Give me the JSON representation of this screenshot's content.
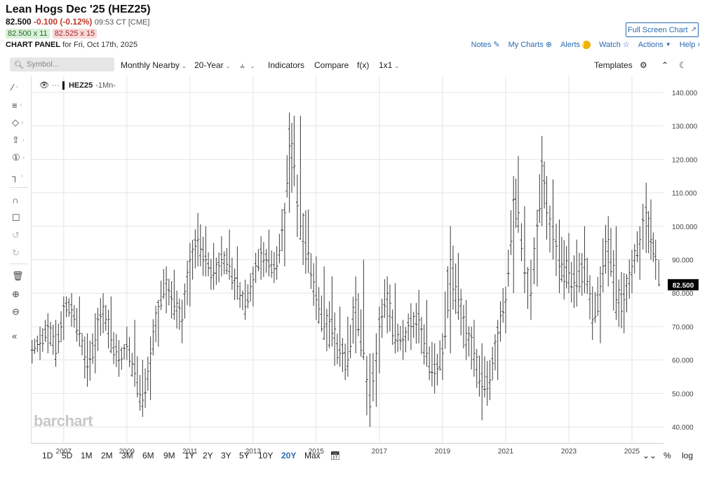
{
  "header": {
    "title": "Lean Hogs Dec '25 (HEZ25)",
    "last": "82.500",
    "change": "-0.100 (-0.12%)",
    "time": "09:53 CT [CME]",
    "bid": "82.500 x 11",
    "ask": "82.525 x 15",
    "panel_label": "CHART PANEL",
    "panel_date": "for Fri, Oct 17th, 2025",
    "fullscreen_label": "Full Screen Chart"
  },
  "toplinks": {
    "notes": "Notes",
    "mycharts": "My Charts",
    "alerts": "Alerts",
    "watch": "Watch",
    "actions": "Actions",
    "help": "Help"
  },
  "toolbar": {
    "search_placeholder": "Symbol...",
    "period": "Monthly Nearby",
    "range": "20-Year",
    "indicators": "Indicators",
    "compare": "Compare",
    "fx": "f(x)",
    "layout": "1x1",
    "templates": "Templates"
  },
  "legend": {
    "symbol": "HEZ25",
    "interval": "-1Mn-"
  },
  "watermark": "barchart",
  "timeframes": [
    "1D",
    "5D",
    "1M",
    "2M",
    "3M",
    "6M",
    "9M",
    "1Y",
    "2Y",
    "3Y",
    "5Y",
    "10Y",
    "20Y",
    "Max"
  ],
  "active_timeframe": "20Y",
  "bottom_right": {
    "percent": "%",
    "log": "log"
  },
  "colors": {
    "accent": "#2a6ab0",
    "bars": "#444444",
    "last_label_bg": "#000000"
  },
  "chart_data": {
    "type": "ohlc",
    "title": "",
    "x_tick_labels": [
      "2007",
      "2009",
      "2011",
      "2013",
      "2015",
      "2017",
      "2019",
      "2021",
      "2023",
      "2025"
    ],
    "y_tick_labels": [
      "40.000",
      "50.000",
      "60.000",
      "70.000",
      "80.000",
      "90.000",
      "100.000",
      "110.000",
      "120.000",
      "130.000",
      "140.000"
    ],
    "ylim": [
      35,
      145
    ],
    "xlim": [
      2005.96,
      2026.0
    ],
    "last_price_label": "82.500",
    "grid": true,
    "bars_monthly_approx": [
      {
        "t": 2006.0,
        "h": 66,
        "l": 59,
        "c": 63
      },
      {
        "t": 2006.25,
        "h": 70,
        "l": 60,
        "c": 65
      },
      {
        "t": 2006.5,
        "h": 74,
        "l": 62,
        "c": 70
      },
      {
        "t": 2006.75,
        "h": 72,
        "l": 58,
        "c": 62
      },
      {
        "t": 2007.0,
        "h": 79,
        "l": 66,
        "c": 76
      },
      {
        "t": 2007.25,
        "h": 80,
        "l": 70,
        "c": 75
      },
      {
        "t": 2007.5,
        "h": 79,
        "l": 64,
        "c": 68
      },
      {
        "t": 2007.75,
        "h": 68,
        "l": 52,
        "c": 58
      },
      {
        "t": 2008.0,
        "h": 74,
        "l": 56,
        "c": 66
      },
      {
        "t": 2008.25,
        "h": 80,
        "l": 68,
        "c": 76
      },
      {
        "t": 2008.5,
        "h": 79,
        "l": 62,
        "c": 66
      },
      {
        "t": 2008.75,
        "h": 66,
        "l": 55,
        "c": 60
      },
      {
        "t": 2009.0,
        "h": 70,
        "l": 60,
        "c": 64
      },
      {
        "t": 2009.25,
        "h": 72,
        "l": 52,
        "c": 56
      },
      {
        "t": 2009.5,
        "h": 60,
        "l": 43,
        "c": 48
      },
      {
        "t": 2009.75,
        "h": 67,
        "l": 48,
        "c": 62
      },
      {
        "t": 2010.0,
        "h": 78,
        "l": 64,
        "c": 76
      },
      {
        "t": 2010.25,
        "h": 88,
        "l": 74,
        "c": 84
      },
      {
        "t": 2010.5,
        "h": 87,
        "l": 72,
        "c": 76
      },
      {
        "t": 2010.75,
        "h": 78,
        "l": 65,
        "c": 72
      },
      {
        "t": 2011.0,
        "h": 95,
        "l": 76,
        "c": 90
      },
      {
        "t": 2011.25,
        "h": 104,
        "l": 88,
        "c": 96
      },
      {
        "t": 2011.5,
        "h": 100,
        "l": 85,
        "c": 90
      },
      {
        "t": 2011.75,
        "h": 95,
        "l": 81,
        "c": 86
      },
      {
        "t": 2012.0,
        "h": 97,
        "l": 85,
        "c": 90
      },
      {
        "t": 2012.25,
        "h": 99,
        "l": 84,
        "c": 88
      },
      {
        "t": 2012.5,
        "h": 94,
        "l": 78,
        "c": 82
      },
      {
        "t": 2012.75,
        "h": 84,
        "l": 72,
        "c": 76
      },
      {
        "t": 2013.0,
        "h": 88,
        "l": 76,
        "c": 84
      },
      {
        "t": 2013.25,
        "h": 97,
        "l": 84,
        "c": 92
      },
      {
        "t": 2013.5,
        "h": 99,
        "l": 85,
        "c": 88
      },
      {
        "t": 2013.75,
        "h": 94,
        "l": 84,
        "c": 88
      },
      {
        "t": 2014.0,
        "h": 107,
        "l": 88,
        "c": 104
      },
      {
        "t": 2014.15,
        "h": 134,
        "l": 104,
        "c": 124
      },
      {
        "t": 2014.3,
        "h": 133,
        "l": 112,
        "c": 118
      },
      {
        "t": 2014.5,
        "h": 133,
        "l": 96,
        "c": 100
      },
      {
        "t": 2014.75,
        "h": 105,
        "l": 86,
        "c": 92
      },
      {
        "t": 2015.0,
        "h": 91,
        "l": 72,
        "c": 78
      },
      {
        "t": 2015.25,
        "h": 88,
        "l": 66,
        "c": 70
      },
      {
        "t": 2015.5,
        "h": 85,
        "l": 64,
        "c": 68
      },
      {
        "t": 2015.75,
        "h": 76,
        "l": 58,
        "c": 62
      },
      {
        "t": 2016.0,
        "h": 73,
        "l": 55,
        "c": 60
      },
      {
        "t": 2016.25,
        "h": 85,
        "l": 62,
        "c": 78
      },
      {
        "t": 2016.5,
        "h": 90,
        "l": 60,
        "c": 62
      },
      {
        "t": 2016.7,
        "h": 62,
        "l": 40,
        "c": 46
      },
      {
        "t": 2016.9,
        "h": 68,
        "l": 46,
        "c": 62
      },
      {
        "t": 2017.0,
        "h": 76,
        "l": 56,
        "c": 70
      },
      {
        "t": 2017.25,
        "h": 85,
        "l": 68,
        "c": 80
      },
      {
        "t": 2017.5,
        "h": 83,
        "l": 62,
        "c": 66
      },
      {
        "t": 2017.75,
        "h": 72,
        "l": 60,
        "c": 66
      },
      {
        "t": 2018.0,
        "h": 77,
        "l": 63,
        "c": 70
      },
      {
        "t": 2018.25,
        "h": 81,
        "l": 65,
        "c": 72
      },
      {
        "t": 2018.5,
        "h": 78,
        "l": 58,
        "c": 62
      },
      {
        "t": 2018.75,
        "h": 65,
        "l": 50,
        "c": 56
      },
      {
        "t": 2019.0,
        "h": 68,
        "l": 54,
        "c": 62
      },
      {
        "t": 2019.25,
        "h": 100,
        "l": 62,
        "c": 90
      },
      {
        "t": 2019.5,
        "h": 92,
        "l": 72,
        "c": 78
      },
      {
        "t": 2019.75,
        "h": 78,
        "l": 60,
        "c": 68
      },
      {
        "t": 2020.0,
        "h": 72,
        "l": 55,
        "c": 62
      },
      {
        "t": 2020.25,
        "h": 65,
        "l": 42,
        "c": 52
      },
      {
        "t": 2020.5,
        "h": 60,
        "l": 48,
        "c": 54
      },
      {
        "t": 2020.75,
        "h": 72,
        "l": 54,
        "c": 68
      },
      {
        "t": 2021.0,
        "h": 82,
        "l": 68,
        "c": 78
      },
      {
        "t": 2021.25,
        "h": 115,
        "l": 80,
        "c": 108
      },
      {
        "t": 2021.4,
        "h": 121,
        "l": 98,
        "c": 104
      },
      {
        "t": 2021.6,
        "h": 106,
        "l": 80,
        "c": 86
      },
      {
        "t": 2021.8,
        "h": 90,
        "l": 72,
        "c": 80
      },
      {
        "t": 2022.0,
        "h": 105,
        "l": 82,
        "c": 100
      },
      {
        "t": 2022.15,
        "h": 127,
        "l": 100,
        "c": 118
      },
      {
        "t": 2022.3,
        "h": 115,
        "l": 96,
        "c": 104
      },
      {
        "t": 2022.5,
        "h": 114,
        "l": 90,
        "c": 96
      },
      {
        "t": 2022.7,
        "h": 102,
        "l": 80,
        "c": 88
      },
      {
        "t": 2023.0,
        "h": 98,
        "l": 80,
        "c": 86
      },
      {
        "t": 2023.25,
        "h": 96,
        "l": 76,
        "c": 82
      },
      {
        "t": 2023.5,
        "h": 100,
        "l": 80,
        "c": 90
      },
      {
        "t": 2023.75,
        "h": 82,
        "l": 66,
        "c": 72
      },
      {
        "t": 2024.0,
        "h": 88,
        "l": 65,
        "c": 82
      },
      {
        "t": 2024.25,
        "h": 103,
        "l": 82,
        "c": 96
      },
      {
        "t": 2024.5,
        "h": 100,
        "l": 72,
        "c": 78
      },
      {
        "t": 2024.75,
        "h": 86,
        "l": 68,
        "c": 78
      },
      {
        "t": 2025.0,
        "h": 93,
        "l": 80,
        "c": 88
      },
      {
        "t": 2025.25,
        "h": 100,
        "l": 84,
        "c": 96
      },
      {
        "t": 2025.45,
        "h": 113,
        "l": 92,
        "c": 104
      },
      {
        "t": 2025.6,
        "h": 108,
        "l": 90,
        "c": 96
      },
      {
        "t": 2025.75,
        "h": 96,
        "l": 84,
        "c": 90
      },
      {
        "t": 2025.85,
        "h": 90,
        "l": 82,
        "c": 82.5
      }
    ]
  }
}
